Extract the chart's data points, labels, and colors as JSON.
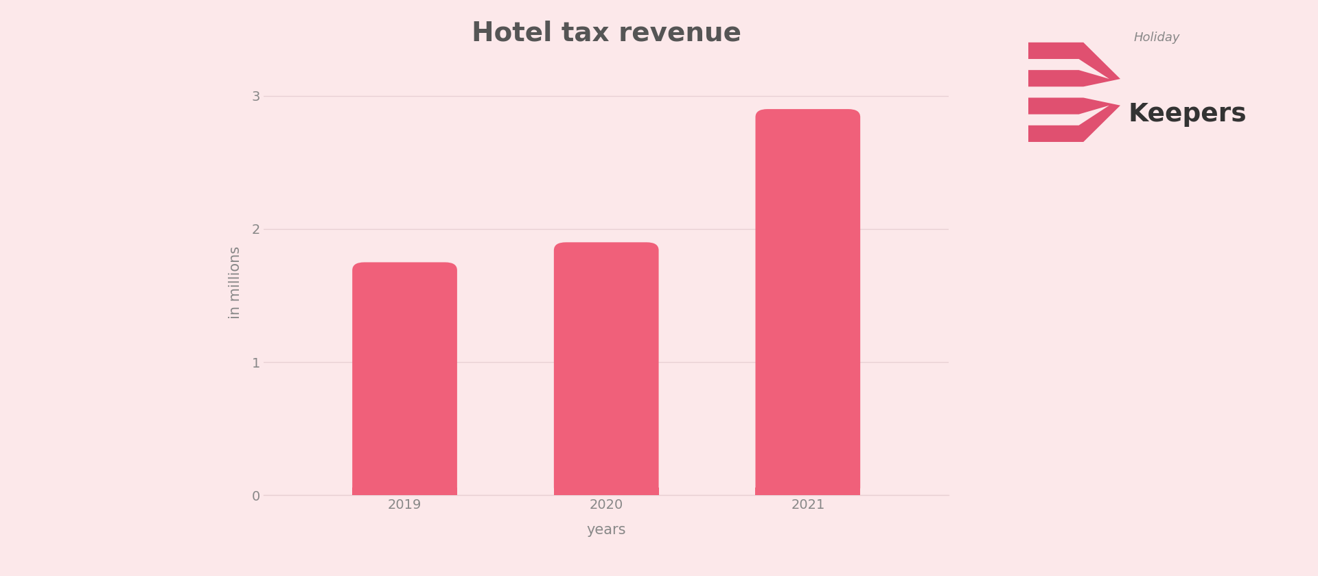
{
  "title": "Hotel tax revenue",
  "xlabel": "years",
  "ylabel": "in millions",
  "categories": [
    "2019",
    "2020",
    "2021"
  ],
  "values": [
    1.75,
    1.9,
    2.9
  ],
  "bar_color": "#f0607a",
  "background_color": "#fce8ea",
  "yticks": [
    0,
    1,
    2,
    3
  ],
  "ylim": [
    0,
    3.2
  ],
  "title_fontsize": 28,
  "title_color": "#555555",
  "axis_label_fontsize": 15,
  "tick_fontsize": 14,
  "tick_color": "#888888",
  "grid_color": "#e8d0d4",
  "bar_width": 0.52,
  "logo_text_holiday": "Holiday",
  "logo_text_keepers": "Keepers",
  "logo_color_keepers": "#333333",
  "logo_color_holiday": "#888888",
  "logo_icon_color": "#e05070",
  "logo_icon_bg": "#fce8ea"
}
